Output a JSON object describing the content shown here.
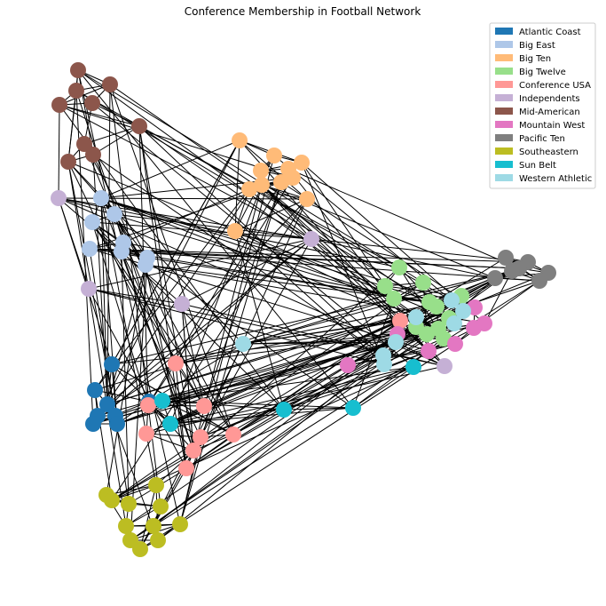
{
  "title": "Conference Membership in Football Network",
  "legend": [
    {
      "label": "Atlantic Coast",
      "color": "#1f77b4"
    },
    {
      "label": "Big East",
      "color": "#aec7e8"
    },
    {
      "label": "Big Ten",
      "color": "#ffbb78"
    },
    {
      "label": "Big Twelve",
      "color": "#98df8a"
    },
    {
      "label": "Conference USA",
      "color": "#ff9896"
    },
    {
      "label": "Independents",
      "color": "#c5b0d5"
    },
    {
      "label": "Mid-American",
      "color": "#8c564b"
    },
    {
      "label": "Mountain West",
      "color": "#e377c2"
    },
    {
      "label": "Pacific Ten",
      "color": "#7f7f7f"
    },
    {
      "label": "Southeastern",
      "color": "#bcbd22"
    },
    {
      "label": "Sun Belt",
      "color": "#17becf"
    },
    {
      "label": "Western Athletic",
      "color": "#9edae5"
    }
  ],
  "edge_color": "#000000",
  "node_radius": 9
}
